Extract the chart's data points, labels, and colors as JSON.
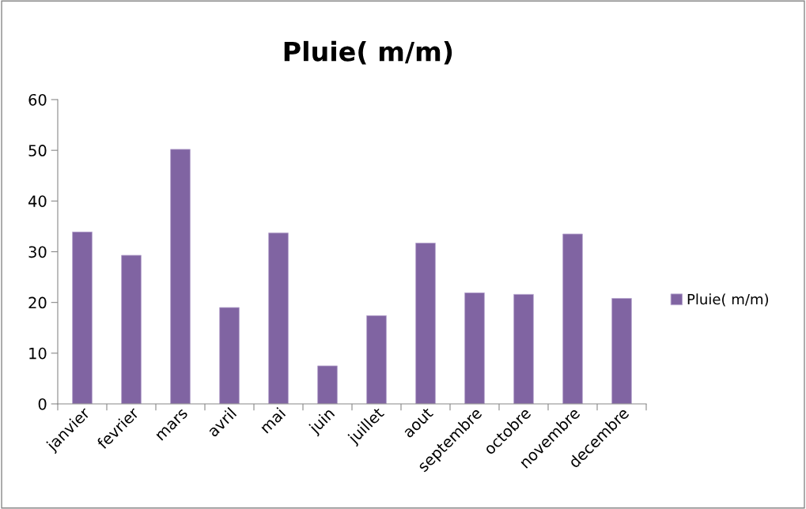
{
  "chart_data": {
    "type": "bar",
    "title": "Pluie( m/m)",
    "categories": [
      "janvier",
      "fevrier",
      "mars",
      "avril",
      "mai",
      "juin",
      "juillet",
      "aout",
      "septembre",
      "octobre",
      "novembre",
      "decembre"
    ],
    "series": [
      {
        "name": "Pluie( m/m)",
        "color": "#8064a2",
        "values": [
          33.9,
          29.3,
          50.2,
          19.0,
          33.7,
          7.5,
          17.4,
          31.7,
          21.9,
          21.6,
          33.5,
          20.8
        ]
      }
    ],
    "ylim": [
      0,
      60
    ],
    "yticks": [
      0,
      10,
      20,
      30,
      40,
      50,
      60
    ],
    "grid": false,
    "legend": "right"
  }
}
